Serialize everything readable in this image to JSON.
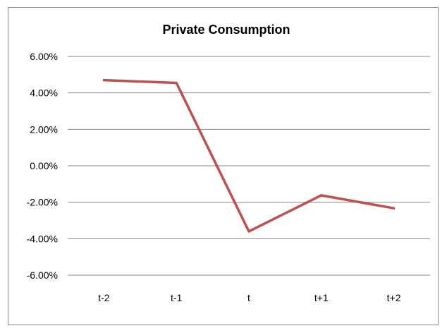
{
  "chart_data": {
    "type": "line",
    "title": "Private Consumption",
    "xlabel": "",
    "ylabel": "",
    "categories": [
      "t-2",
      "t-1",
      "t",
      "t+1",
      "t+2"
    ],
    "series": [
      {
        "values": [
          4.7,
          4.55,
          -3.6,
          -1.62,
          -2.33
        ],
        "color": "#c0504d"
      }
    ],
    "ylim": [
      -6,
      6
    ],
    "yticks": [
      6,
      4,
      2,
      0,
      -2,
      -4,
      -6
    ],
    "ytick_labels": [
      "6.00%",
      "4.00%",
      "2.00%",
      "0.00%",
      "-2.00%",
      "-4.00%",
      "-6.00%"
    ],
    "grid": true,
    "legend": "none",
    "gridline_color": "#868686"
  }
}
